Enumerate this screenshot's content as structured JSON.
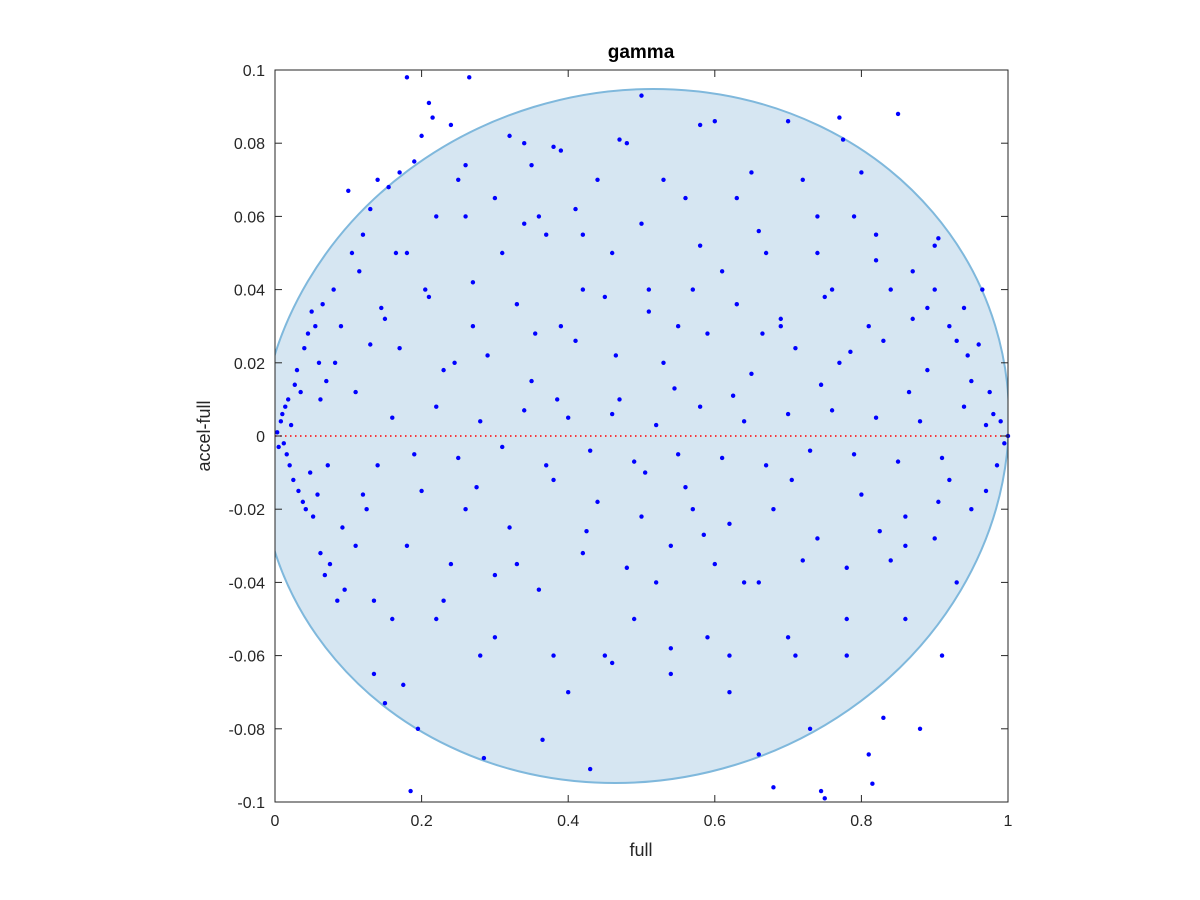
{
  "chart_data": {
    "type": "scatter",
    "title": "gamma",
    "xlabel": "full",
    "ylabel": "accel-full",
    "xlim": [
      0,
      1
    ],
    "ylim": [
      -0.1,
      0.1
    ],
    "x_ticks": [
      0,
      0.2,
      0.4,
      0.6,
      0.8,
      1
    ],
    "x_tick_labels": [
      "0",
      "0.2",
      "0.4",
      "0.6",
      "0.8",
      "1"
    ],
    "y_ticks": [
      -0.1,
      -0.08,
      -0.06,
      -0.04,
      -0.02,
      0,
      0.02,
      0.04,
      0.06,
      0.08,
      0.1
    ],
    "y_tick_labels": [
      "-0.1",
      "-0.08",
      "-0.06",
      "-0.04",
      "-0.02",
      "0",
      "0.02",
      "0.04",
      "0.06",
      "0.08",
      "0.1"
    ],
    "grid": false,
    "box": true,
    "reference_line": {
      "y": 0,
      "style": "dotted",
      "color": "#ff0000"
    },
    "region": {
      "shape": "ellipse",
      "center": [
        0.49,
        0.0
      ],
      "semi_axes": [
        0.515,
        0.094
      ],
      "rotation_deg": -17,
      "fill": "#d6e6f2",
      "stroke": "#7fb8dc"
    },
    "series": [
      {
        "color": "#0000ff",
        "points": [
          [
            0.003,
            0.001
          ],
          [
            0.005,
            -0.003
          ],
          [
            0.008,
            0.004
          ],
          [
            0.01,
            0.006
          ],
          [
            0.012,
            -0.002
          ],
          [
            0.014,
            0.008
          ],
          [
            0.016,
            -0.005
          ],
          [
            0.018,
            0.01
          ],
          [
            0.02,
            -0.008
          ],
          [
            0.022,
            0.003
          ],
          [
            0.025,
            -0.012
          ],
          [
            0.027,
            0.014
          ],
          [
            0.03,
            0.018
          ],
          [
            0.032,
            -0.015
          ],
          [
            0.035,
            0.012
          ],
          [
            0.038,
            -0.018
          ],
          [
            0.04,
            0.024
          ],
          [
            0.042,
            -0.02
          ],
          [
            0.045,
            0.028
          ],
          [
            0.048,
            -0.01
          ],
          [
            0.05,
            0.034
          ],
          [
            0.052,
            -0.022
          ],
          [
            0.055,
            0.03
          ],
          [
            0.058,
            -0.016
          ],
          [
            0.06,
            0.02
          ],
          [
            0.062,
            -0.032
          ],
          [
            0.065,
            0.036
          ],
          [
            0.068,
            -0.038
          ],
          [
            0.07,
            0.015
          ],
          [
            0.075,
            -0.035
          ],
          [
            0.08,
            0.04
          ],
          [
            0.085,
            -0.045
          ],
          [
            0.09,
            0.03
          ],
          [
            0.095,
            -0.042
          ],
          [
            0.1,
            0.067
          ],
          [
            0.105,
            0.05
          ],
          [
            0.11,
            -0.03
          ],
          [
            0.115,
            0.045
          ],
          [
            0.12,
            0.055
          ],
          [
            0.125,
            -0.02
          ],
          [
            0.13,
            0.062
          ],
          [
            0.135,
            -0.065
          ],
          [
            0.14,
            0.07
          ],
          [
            0.145,
            0.035
          ],
          [
            0.15,
            -0.073
          ],
          [
            0.155,
            0.068
          ],
          [
            0.16,
            -0.05
          ],
          [
            0.165,
            0.05
          ],
          [
            0.17,
            0.072
          ],
          [
            0.175,
            -0.068
          ],
          [
            0.18,
            0.098
          ],
          [
            0.185,
            -0.097
          ],
          [
            0.19,
            0.075
          ],
          [
            0.195,
            -0.08
          ],
          [
            0.2,
            0.082
          ],
          [
            0.205,
            0.04
          ],
          [
            0.21,
            0.091
          ],
          [
            0.215,
            0.087
          ],
          [
            0.22,
            0.06
          ],
          [
            0.23,
            -0.045
          ],
          [
            0.24,
            0.085
          ],
          [
            0.25,
            0.07
          ],
          [
            0.26,
            0.074
          ],
          [
            0.265,
            0.098
          ],
          [
            0.27,
            0.03
          ],
          [
            0.28,
            -0.06
          ],
          [
            0.285,
            -0.088
          ],
          [
            0.3,
            0.065
          ],
          [
            0.31,
            0.05
          ],
          [
            0.32,
            0.082
          ],
          [
            0.33,
            -0.035
          ],
          [
            0.34,
            0.08
          ],
          [
            0.35,
            0.074
          ],
          [
            0.36,
            0.06
          ],
          [
            0.365,
            -0.083
          ],
          [
            0.37,
            0.055
          ],
          [
            0.38,
            0.079
          ],
          [
            0.39,
            0.078
          ],
          [
            0.4,
            -0.07
          ],
          [
            0.41,
            0.062
          ],
          [
            0.42,
            0.04
          ],
          [
            0.43,
            -0.091
          ],
          [
            0.44,
            0.07
          ],
          [
            0.45,
            -0.06
          ],
          [
            0.46,
            0.05
          ],
          [
            0.47,
            0.081
          ],
          [
            0.48,
            0.08
          ],
          [
            0.49,
            -0.05
          ],
          [
            0.5,
            0.093
          ],
          [
            0.51,
            0.04
          ],
          [
            0.52,
            -0.04
          ],
          [
            0.53,
            0.07
          ],
          [
            0.54,
            -0.065
          ],
          [
            0.55,
            0.03
          ],
          [
            0.56,
            0.065
          ],
          [
            0.57,
            -0.02
          ],
          [
            0.58,
            0.085
          ],
          [
            0.59,
            -0.055
          ],
          [
            0.6,
            0.086
          ],
          [
            0.61,
            0.045
          ],
          [
            0.62,
            -0.07
          ],
          [
            0.63,
            0.065
          ],
          [
            0.64,
            -0.04
          ],
          [
            0.65,
            0.072
          ],
          [
            0.66,
            -0.087
          ],
          [
            0.67,
            0.05
          ],
          [
            0.68,
            -0.096
          ],
          [
            0.69,
            0.03
          ],
          [
            0.7,
            0.086
          ],
          [
            0.71,
            -0.06
          ],
          [
            0.72,
            0.07
          ],
          [
            0.73,
            -0.08
          ],
          [
            0.74,
            0.06
          ],
          [
            0.745,
            -0.097
          ],
          [
            0.75,
            -0.099
          ],
          [
            0.76,
            0.04
          ],
          [
            0.77,
            0.087
          ],
          [
            0.775,
            0.081
          ],
          [
            0.78,
            -0.05
          ],
          [
            0.79,
            0.06
          ],
          [
            0.8,
            0.072
          ],
          [
            0.81,
            -0.087
          ],
          [
            0.815,
            -0.095
          ],
          [
            0.82,
            0.055
          ],
          [
            0.83,
            -0.077
          ],
          [
            0.84,
            0.04
          ],
          [
            0.85,
            0.088
          ],
          [
            0.86,
            -0.03
          ],
          [
            0.87,
            0.045
          ],
          [
            0.88,
            -0.08
          ],
          [
            0.89,
            0.035
          ],
          [
            0.9,
            0.052
          ],
          [
            0.905,
            0.054
          ],
          [
            0.91,
            -0.06
          ],
          [
            0.92,
            0.03
          ],
          [
            0.93,
            -0.04
          ],
          [
            0.94,
            0.035
          ],
          [
            0.95,
            -0.02
          ],
          [
            0.96,
            0.025
          ],
          [
            0.965,
            0.04
          ],
          [
            0.97,
            -0.015
          ],
          [
            0.975,
            0.012
          ],
          [
            0.98,
            0.006
          ],
          [
            0.985,
            -0.008
          ],
          [
            0.99,
            0.004
          ],
          [
            0.995,
            -0.002
          ],
          [
            1.0,
            0.0
          ],
          [
            0.11,
            0.012
          ],
          [
            0.14,
            -0.008
          ],
          [
            0.17,
            0.024
          ],
          [
            0.2,
            -0.015
          ],
          [
            0.23,
            0.018
          ],
          [
            0.26,
            -0.02
          ],
          [
            0.29,
            0.022
          ],
          [
            0.32,
            -0.025
          ],
          [
            0.35,
            0.015
          ],
          [
            0.38,
            -0.012
          ],
          [
            0.41,
            0.026
          ],
          [
            0.44,
            -0.018
          ],
          [
            0.47,
            0.01
          ],
          [
            0.5,
            -0.022
          ],
          [
            0.53,
            0.02
          ],
          [
            0.56,
            -0.014
          ],
          [
            0.59,
            0.028
          ],
          [
            0.62,
            -0.024
          ],
          [
            0.65,
            0.017
          ],
          [
            0.68,
            -0.02
          ],
          [
            0.71,
            0.024
          ],
          [
            0.74,
            -0.028
          ],
          [
            0.77,
            0.02
          ],
          [
            0.8,
            -0.016
          ],
          [
            0.83,
            0.026
          ],
          [
            0.86,
            -0.022
          ],
          [
            0.89,
            0.018
          ],
          [
            0.92,
            -0.012
          ],
          [
            0.95,
            0.015
          ],
          [
            0.15,
            0.032
          ],
          [
            0.18,
            -0.03
          ],
          [
            0.21,
            0.038
          ],
          [
            0.24,
            -0.035
          ],
          [
            0.27,
            0.042
          ],
          [
            0.3,
            -0.038
          ],
          [
            0.33,
            0.036
          ],
          [
            0.36,
            -0.042
          ],
          [
            0.39,
            0.03
          ],
          [
            0.42,
            -0.032
          ],
          [
            0.45,
            0.038
          ],
          [
            0.48,
            -0.036
          ],
          [
            0.51,
            0.034
          ],
          [
            0.54,
            -0.03
          ],
          [
            0.57,
            0.04
          ],
          [
            0.6,
            -0.035
          ],
          [
            0.63,
            0.036
          ],
          [
            0.66,
            -0.04
          ],
          [
            0.69,
            0.032
          ],
          [
            0.72,
            -0.034
          ],
          [
            0.75,
            0.038
          ],
          [
            0.78,
            -0.036
          ],
          [
            0.81,
            0.03
          ],
          [
            0.84,
            -0.034
          ],
          [
            0.87,
            0.032
          ],
          [
            0.9,
            -0.028
          ],
          [
            0.93,
            0.026
          ],
          [
            0.12,
            -0.016
          ],
          [
            0.16,
            0.005
          ],
          [
            0.19,
            -0.005
          ],
          [
            0.22,
            0.008
          ],
          [
            0.25,
            -0.006
          ],
          [
            0.28,
            0.004
          ],
          [
            0.31,
            -0.003
          ],
          [
            0.34,
            0.007
          ],
          [
            0.37,
            -0.008
          ],
          [
            0.4,
            0.005
          ],
          [
            0.43,
            -0.004
          ],
          [
            0.46,
            0.006
          ],
          [
            0.49,
            -0.007
          ],
          [
            0.52,
            0.003
          ],
          [
            0.55,
            -0.005
          ],
          [
            0.58,
            0.008
          ],
          [
            0.61,
            -0.006
          ],
          [
            0.64,
            0.004
          ],
          [
            0.67,
            -0.008
          ],
          [
            0.7,
            0.006
          ],
          [
            0.73,
            -0.004
          ],
          [
            0.76,
            0.007
          ],
          [
            0.79,
            -0.005
          ],
          [
            0.82,
            0.005
          ],
          [
            0.85,
            -0.007
          ],
          [
            0.88,
            0.004
          ],
          [
            0.91,
            -0.006
          ],
          [
            0.94,
            0.008
          ],
          [
            0.97,
            0.003
          ],
          [
            0.18,
            0.05
          ],
          [
            0.22,
            -0.05
          ],
          [
            0.26,
            0.06
          ],
          [
            0.3,
            -0.055
          ],
          [
            0.34,
            0.058
          ],
          [
            0.38,
            -0.06
          ],
          [
            0.42,
            0.055
          ],
          [
            0.46,
            -0.062
          ],
          [
            0.5,
            0.058
          ],
          [
            0.54,
            -0.058
          ],
          [
            0.58,
            0.052
          ],
          [
            0.62,
            -0.06
          ],
          [
            0.66,
            0.056
          ],
          [
            0.7,
            -0.055
          ],
          [
            0.74,
            0.05
          ],
          [
            0.78,
            -0.06
          ],
          [
            0.82,
            0.048
          ],
          [
            0.86,
            -0.05
          ],
          [
            0.9,
            0.04
          ],
          [
            0.13,
            0.025
          ],
          [
            0.135,
            -0.045
          ],
          [
            0.245,
            0.02
          ],
          [
            0.275,
            -0.014
          ],
          [
            0.355,
            0.028
          ],
          [
            0.385,
            0.01
          ],
          [
            0.425,
            -0.026
          ],
          [
            0.465,
            0.022
          ],
          [
            0.505,
            -0.01
          ],
          [
            0.545,
            0.013
          ],
          [
            0.585,
            -0.027
          ],
          [
            0.625,
            0.011
          ],
          [
            0.665,
            0.028
          ],
          [
            0.705,
            -0.012
          ],
          [
            0.745,
            0.014
          ],
          [
            0.785,
            0.023
          ],
          [
            0.825,
            -0.026
          ],
          [
            0.865,
            0.012
          ],
          [
            0.905,
            -0.018
          ],
          [
            0.945,
            0.022
          ],
          [
            0.062,
            0.01
          ],
          [
            0.072,
            -0.008
          ],
          [
            0.082,
            0.02
          ],
          [
            0.092,
            -0.025
          ]
        ]
      }
    ]
  }
}
